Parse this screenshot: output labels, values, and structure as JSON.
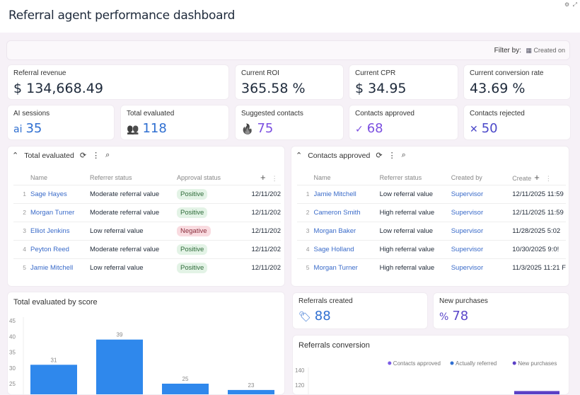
{
  "header": {
    "title": "Referral agent performance dashboard",
    "icons": [
      "gear-icon",
      "expand-icon"
    ]
  },
  "filter": {
    "label": "Filter by:",
    "value": "Created on",
    "icon": "calendar-icon"
  },
  "kpis_row1": [
    {
      "label": "Referral revenue",
      "value": "$ 134,668.49"
    },
    {
      "label": "Current ROI",
      "value": "365.58 %"
    },
    {
      "label": "Current CPR",
      "value": "$ 34.95"
    },
    {
      "label": "Current conversion rate",
      "value": "43.69 %"
    }
  ],
  "kpis_row2": [
    {
      "label": "AI sessions",
      "value": "35",
      "icon": "ai-icon",
      "glyph": "ai",
      "color": "#2f6fd1"
    },
    {
      "label": "Total evaluated",
      "value": "118",
      "icon": "users-icon",
      "glyph": "👥",
      "color": "#2f6fd1"
    },
    {
      "label": "Suggested contacts",
      "value": "75",
      "icon": "flame-icon",
      "glyph": "🔥",
      "color": "#7b4fe0"
    },
    {
      "label": "Contacts approved",
      "value": "68",
      "icon": "check-icon",
      "glyph": "✓",
      "color": "#7b4fe0"
    },
    {
      "label": "Contacts rejected",
      "value": "50",
      "icon": "x-icon",
      "glyph": "✕",
      "color": "#4b48c9"
    }
  ],
  "table_left": {
    "title": "Total evaluated",
    "columns": [
      "Name",
      "Referrer status",
      "Approval status",
      ""
    ],
    "rows": [
      {
        "n": "1",
        "name": "Sage Hayes",
        "status": "Moderate referral value",
        "approval": "Positive",
        "date": "12/11/202"
      },
      {
        "n": "2",
        "name": "Morgan Turner",
        "status": "Moderate referral value",
        "approval": "Positive",
        "date": "12/11/202"
      },
      {
        "n": "3",
        "name": "Elliot Jenkins",
        "status": "Low referral value",
        "approval": "Negative",
        "date": "12/11/202"
      },
      {
        "n": "4",
        "name": "Peyton Reed",
        "status": "Moderate referral value",
        "approval": "Positive",
        "date": "12/11/202"
      },
      {
        "n": "5",
        "name": "Jamie Mitchell",
        "status": "Low referral value",
        "approval": "Positive",
        "date": "12/11/202"
      }
    ]
  },
  "table_right": {
    "title": "Contacts approved",
    "columns": [
      "Name",
      "Referrer status",
      "Created by",
      "Create"
    ],
    "rows": [
      {
        "n": "1",
        "name": "Jamie Mitchell",
        "status": "Low referral value",
        "by": "Supervisor",
        "date": "12/11/2025 11:59"
      },
      {
        "n": "2",
        "name": "Cameron Smith",
        "status": "High referral value",
        "by": "Supervisor",
        "date": "12/11/2025 11:59"
      },
      {
        "n": "3",
        "name": "Morgan Baker",
        "status": "Low referral value",
        "by": "Supervisor",
        "date": "11/28/2025 5:02"
      },
      {
        "n": "4",
        "name": "Sage Holland",
        "status": "High referral value",
        "by": "Supervisor",
        "date": "10/30/2025 9:0!"
      },
      {
        "n": "5",
        "name": "Morgan Turner",
        "status": "High referral value",
        "by": "Supervisor",
        "date": "11/3/2025 11:21 F"
      }
    ]
  },
  "referrals_created": {
    "label": "Referrals created",
    "value": "88",
    "icon": "tag-icon",
    "color": "#2f6fd1"
  },
  "new_purchases": {
    "label": "New purchases",
    "value": "78",
    "icon": "discount-icon",
    "color": "#5a46c9"
  },
  "chart_data": [
    {
      "type": "bar",
      "title": "Total evaluated by score",
      "values": [
        31,
        39,
        25,
        23
      ],
      "yticks": [
        "45",
        "40",
        "35",
        "30",
        "25"
      ],
      "ylim_visible": [
        25,
        45
      ],
      "color": "#2f88ec",
      "data_labels": true
    },
    {
      "type": "bar",
      "title": "Referrals conversion",
      "legend": [
        "Contacts approved",
        "Actually referred",
        "New purchases"
      ],
      "legend_colors": [
        "#7b5ce6",
        "#2f6fd1",
        "#5a3fc6"
      ],
      "legend_position": "top-right",
      "yticks": [
        "140",
        "120"
      ],
      "visible_bar": {
        "series": "New purchases",
        "value": 112
      }
    }
  ]
}
